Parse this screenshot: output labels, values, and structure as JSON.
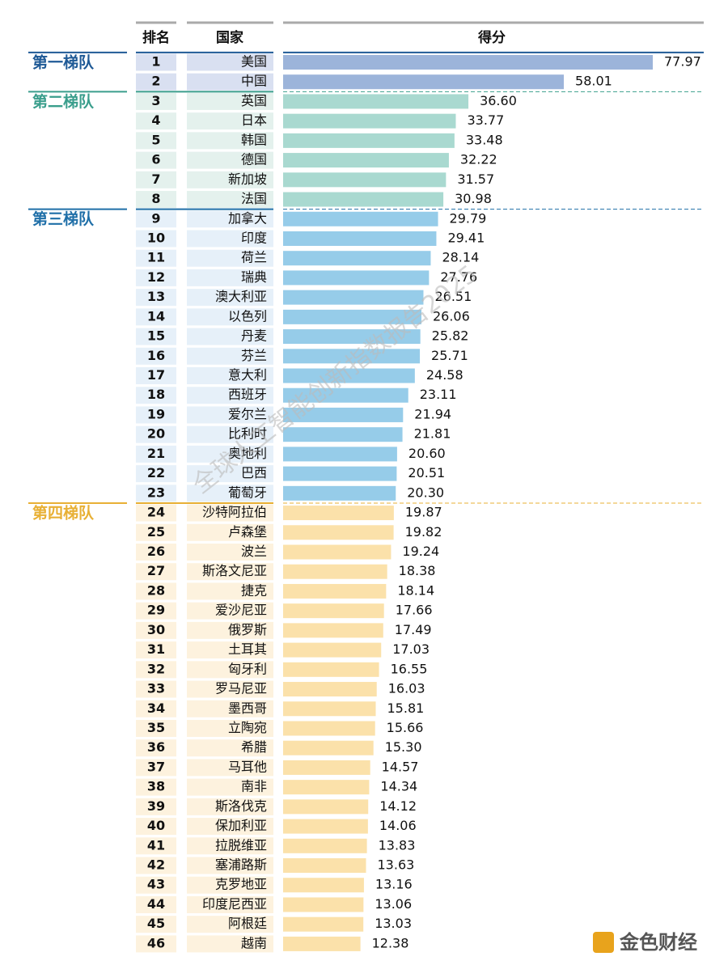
{
  "chart_data": {
    "type": "bar",
    "headers": [
      "排名",
      "国家",
      "得分"
    ],
    "watermark": "全球人工智能创新指数报告2025",
    "logo": "金色财经",
    "tiers": [
      {
        "name": "第一梯队",
        "color": "#1f5a96",
        "bar_color": "#9cb4da",
        "cell_color": "#d9e0f1",
        "ranks": [
          1,
          2
        ],
        "categories": [
          "美国",
          "中国"
        ],
        "values": [
          77.97,
          58.01
        ],
        "value_labels": [
          "77.97",
          "58.01"
        ]
      },
      {
        "name": "第二梯队",
        "color": "#3a9e8c",
        "bar_color": "#a9d9d0",
        "cell_color": "#e4f1ed",
        "ranks": [
          3,
          4,
          5,
          6,
          7,
          8
        ],
        "categories": [
          "英国",
          "日本",
          "韩国",
          "德国",
          "新加坡",
          "法国"
        ],
        "values": [
          36.6,
          33.77,
          33.48,
          32.22,
          31.57,
          30.98
        ],
        "value_labels": [
          "36.60",
          "33.77",
          "33.48",
          "32.22",
          "31.57",
          "30.98"
        ]
      },
      {
        "name": "第三梯队",
        "color": "#1f6fa8",
        "bar_color": "#96cce9",
        "cell_color": "#e6f0f9",
        "ranks": [
          9,
          10,
          11,
          12,
          13,
          14,
          15,
          16,
          17,
          18,
          19,
          20,
          21,
          22,
          23
        ],
        "categories": [
          "加拿大",
          "印度",
          "荷兰",
          "瑞典",
          "澳大利亚",
          "以色列",
          "丹麦",
          "芬兰",
          "意大利",
          "西班牙",
          "爱尔兰",
          "比利时",
          "奥地利",
          "巴西",
          "葡萄牙"
        ],
        "values": [
          29.79,
          29.41,
          28.14,
          27.76,
          26.51,
          26.06,
          25.82,
          25.71,
          24.58,
          23.11,
          21.94,
          21.81,
          20.6,
          20.51,
          20.3
        ],
        "value_labels": [
          "29.79",
          "29.41",
          "28.14",
          "27.76",
          "26.51",
          "26.06",
          "25.82",
          "25.71",
          "24.58",
          "23.11",
          "21.94",
          "21.81",
          "20.60",
          "20.51",
          "20.30"
        ]
      },
      {
        "name": "第四梯队",
        "color": "#e8b035",
        "bar_color": "#fbe1aa",
        "cell_color": "#fdf2de",
        "ranks": [
          24,
          25,
          26,
          27,
          28,
          29,
          30,
          31,
          32,
          33,
          34,
          35,
          36,
          37,
          38,
          39,
          40,
          41,
          42,
          43,
          44,
          45,
          46
        ],
        "categories": [
          "沙特阿拉伯",
          "卢森堡",
          "波兰",
          "斯洛文尼亚",
          "捷克",
          "爱沙尼亚",
          "俄罗斯",
          "土耳其",
          "匈牙利",
          "罗马尼亚",
          "墨西哥",
          "立陶宛",
          "希腊",
          "马耳他",
          "南非",
          "斯洛伐克",
          "保加利亚",
          "拉脱维亚",
          "塞浦路斯",
          "克罗地亚",
          "印度尼西亚",
          "阿根廷",
          "越南"
        ],
        "values": [
          19.87,
          19.82,
          19.24,
          18.38,
          18.14,
          17.66,
          17.49,
          17.03,
          16.55,
          16.03,
          15.81,
          15.66,
          15.3,
          14.57,
          14.34,
          14.12,
          14.06,
          13.83,
          13.63,
          13.16,
          13.06,
          13.03,
          12.38
        ],
        "value_labels": [
          "19.87",
          "19.82",
          "19.24",
          "18.38",
          "18.14",
          "17.66",
          "17.49",
          "17.03",
          "16.55",
          "16.03",
          "15.81",
          "15.66",
          "15.30",
          "14.57",
          "14.34",
          "14.12",
          "14.06",
          "13.83",
          "13.63",
          "13.16",
          "13.06",
          "13.03",
          "12.38"
        ]
      }
    ]
  }
}
